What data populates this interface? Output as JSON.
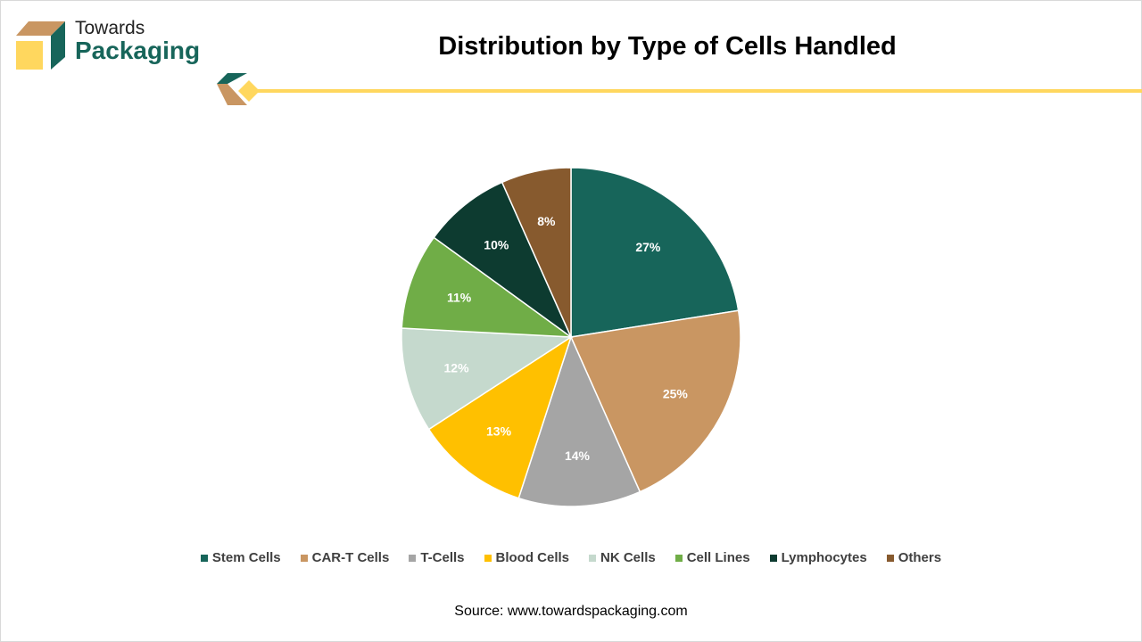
{
  "brand": {
    "line1": "Towards",
    "line2": "Packaging"
  },
  "source": "Source: www.towardspackaging.com",
  "chart_data": {
    "type": "pie",
    "title": "Distribution by Type of Cells Handled",
    "categories": [
      "Stem Cells",
      "CAR-T Cells",
      "T-Cells",
      "Blood Cells",
      "NK Cells",
      "Cell Lines",
      "Lymphocytes",
      "Others"
    ],
    "values": [
      27,
      25,
      14,
      13,
      12,
      11,
      10,
      8
    ],
    "labels": [
      "27%",
      "25%",
      "14%",
      "13%",
      "12%",
      "11%",
      "10%",
      "8%"
    ],
    "colors": [
      "#17655A",
      "#C99662",
      "#A5A5A5",
      "#FFC000",
      "#C5D9CD",
      "#70AD47",
      "#0D3B30",
      "#875A2E"
    ],
    "legend": "bottom"
  }
}
